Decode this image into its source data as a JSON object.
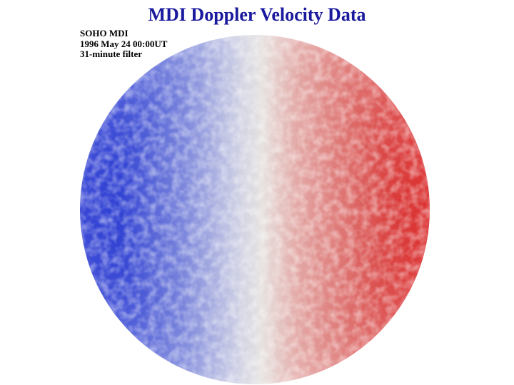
{
  "title": "MDI Doppler Velocity Data",
  "image": {
    "description_lines": [
      "SOHO MDI",
      "1996 May 24 00:00UT",
      "31-minute filter"
    ],
    "colors": {
      "approaching": "#1f2fd0",
      "center": "#e6e2e0",
      "receding": "#d81818",
      "title": "#1a1a9e"
    }
  }
}
